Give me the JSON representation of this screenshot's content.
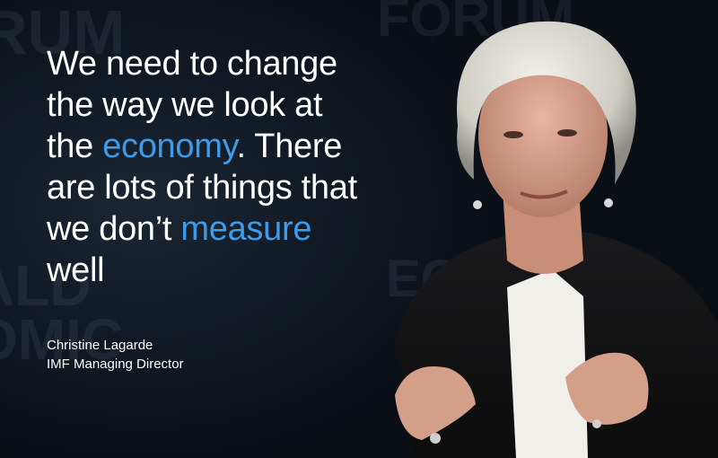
{
  "quote": {
    "lines": [
      [
        {
          "text": "We need to change",
          "highlight": false
        }
      ],
      [
        {
          "text": "the way we look at",
          "highlight": false
        }
      ],
      [
        {
          "text": "the ",
          "highlight": false
        },
        {
          "text": "economy",
          "highlight": true
        },
        {
          "text": ". There",
          "highlight": false
        }
      ],
      [
        {
          "text": "are lots of things that",
          "highlight": false
        }
      ],
      [
        {
          "text": "we don’t ",
          "highlight": false
        },
        {
          "text": "measure",
          "highlight": true
        }
      ],
      [
        {
          "text": "well",
          "highlight": false
        }
      ]
    ]
  },
  "attribution": {
    "name": "Christine Lagarde",
    "role": "IMF Managing Director"
  },
  "colors": {
    "background": "#0b1119",
    "text": "#ffffff",
    "highlight": "#3d9be9"
  }
}
